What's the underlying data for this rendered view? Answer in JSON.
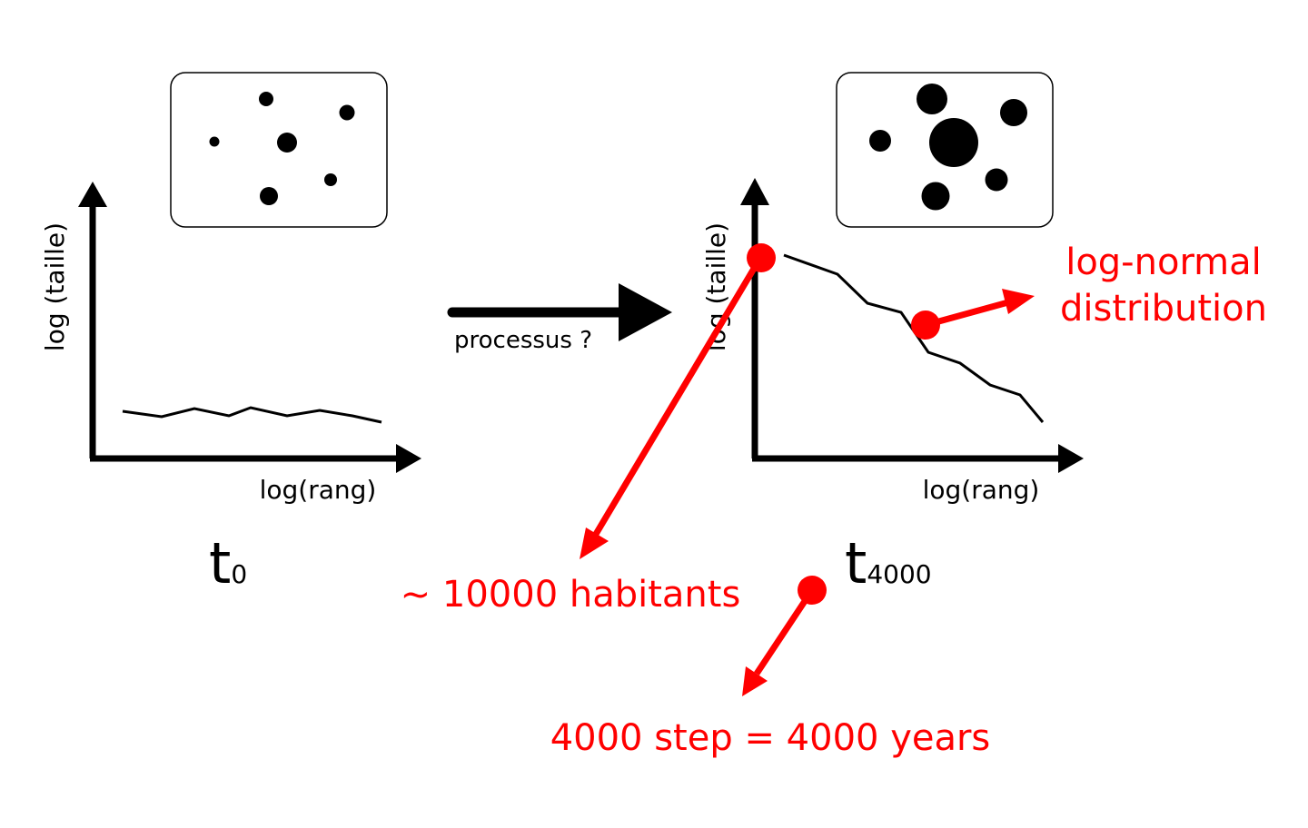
{
  "left_panel": {
    "y_axis_label": "log (taille)",
    "x_axis_label": "log(rang)",
    "time_base": "t",
    "time_subscript": "0",
    "map_icon": "settlements-map-icon"
  },
  "process_arrow": {
    "label": "processus ?"
  },
  "right_panel": {
    "y_axis_label": "log (taille)",
    "x_axis_label": "log(rang)",
    "time_base": "t",
    "time_subscript": "4000",
    "map_icon": "settlements-map-icon"
  },
  "annotations": {
    "color": "#ff0000",
    "lognormal_line1": "log-normal",
    "lognormal_line2": "distribution",
    "habitants": "~ 10000 habitants",
    "steps": "4000 step = 4000 years"
  }
}
